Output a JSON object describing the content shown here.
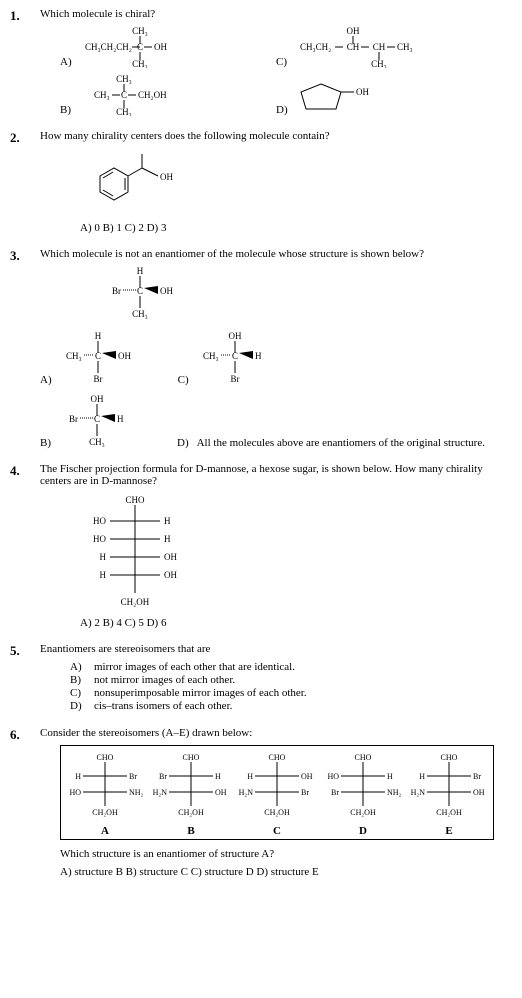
{
  "q1": {
    "num": "1.",
    "text": "Which molecule is chiral?",
    "labels": {
      "a": "A)",
      "b": "B)",
      "c": "C)",
      "d": "D)"
    },
    "formula_a": "CH₃CH₂CH₂—C—OH",
    "formula_a_top": "CH₃",
    "formula_a_bot": "CH₃",
    "formula_b": "CH₃—C—CH₂OH",
    "formula_b_top": "CH₃",
    "formula_b_bot": "CH₃",
    "formula_c": "CH₃CH₂—CH—CH—CH₃",
    "formula_c_top": "OH",
    "formula_c_bot": "CH₃",
    "d_text": "OH"
  },
  "q2": {
    "num": "2.",
    "text": "How many chirality centers does the following molecule contain?",
    "choices": "A) 0   B) 1   C) 2   D) 3"
  },
  "q3": {
    "num": "3.",
    "text": "Which molecule is not an enantiomer of the molecule whose structure is shown below?",
    "labels": {
      "a": "A)",
      "b": "B)",
      "c": "C)",
      "d": "D)"
    },
    "d_text": "All the molecules above are enantiomers of the original structure."
  },
  "q4": {
    "num": "4.",
    "text": "The Fischer projection formula for D-mannose, a hexose sugar, is shown below.  How many chirality centers are in D-mannose?",
    "top": "CHO",
    "r1l": "HO",
    "r1r": "H",
    "r2l": "HO",
    "r2r": "H",
    "r3l": "H",
    "r3r": "OH",
    "r4l": "H",
    "r4r": "OH",
    "bot": "CH₂OH",
    "choices": "A) 2   B) 4   C) 5   D) 6"
  },
  "q5": {
    "num": "5.",
    "text": "Enantiomers are stereoisomers that are",
    "a": "A)",
    "at": "mirror images of each other that are identical.",
    "b": "B)",
    "bt": "not mirror images of each other.",
    "c": "C)",
    "ct": "nonsuperimposable mirror images of each other.",
    "d": "D)",
    "dt": "cis–trans isomers of each other."
  },
  "q6": {
    "num": "6.",
    "text": "Consider the stereoisomers (A–E) drawn below:",
    "top": "CHO",
    "bot": "CH₂OH",
    "structures": [
      {
        "lbl": "A",
        "r1l": "H",
        "r1r": "Br",
        "r2l": "HO",
        "r2r": "NH₂"
      },
      {
        "lbl": "B",
        "r1l": "Br",
        "r1r": "H",
        "r2l": "H₂N",
        "r2r": "OH"
      },
      {
        "lbl": "C",
        "r1l": "H",
        "r1r": "OH",
        "r2l": "H₂N",
        "r2r": "Br"
      },
      {
        "lbl": "D",
        "r1l": "HO",
        "r1r": "H",
        "r2l": "Br",
        "r2r": "NH₂"
      },
      {
        "lbl": "E",
        "r1l": "H",
        "r1r": "Br",
        "r2l": "H₂N",
        "r2r": "OH"
      }
    ],
    "ask": "Which structure is an enantiomer of structure A?",
    "choices": "A) structure B    B) structure C    C) structure D    D) structure E"
  }
}
